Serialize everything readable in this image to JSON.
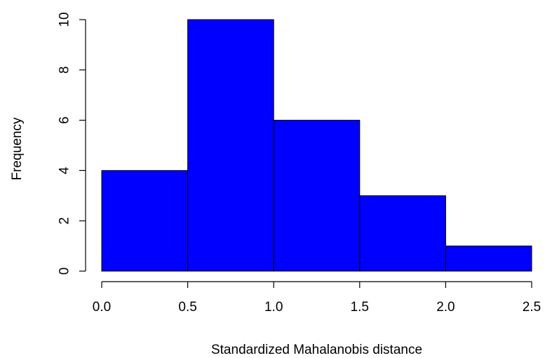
{
  "chart_data": {
    "type": "bar",
    "subtype": "histogram",
    "bins": [
      {
        "from": 0.0,
        "to": 0.5,
        "count": 4
      },
      {
        "from": 0.5,
        "to": 1.0,
        "count": 10
      },
      {
        "from": 1.0,
        "to": 1.5,
        "count": 6
      },
      {
        "from": 1.5,
        "to": 2.0,
        "count": 3
      },
      {
        "from": 2.0,
        "to": 2.5,
        "count": 1
      }
    ],
    "x_ticks": [
      "0.0",
      "0.5",
      "1.0",
      "1.5",
      "2.0",
      "2.5"
    ],
    "y_ticks": [
      "0",
      "2",
      "4",
      "6",
      "8",
      "10"
    ],
    "xlabel": "Standardized Mahalanobis distance",
    "ylabel": "Frequency",
    "xlim": [
      0,
      2.5
    ],
    "ylim": [
      0,
      10
    ],
    "grid": false,
    "bar_color": "#0000ff",
    "edge_color": "#000000"
  }
}
